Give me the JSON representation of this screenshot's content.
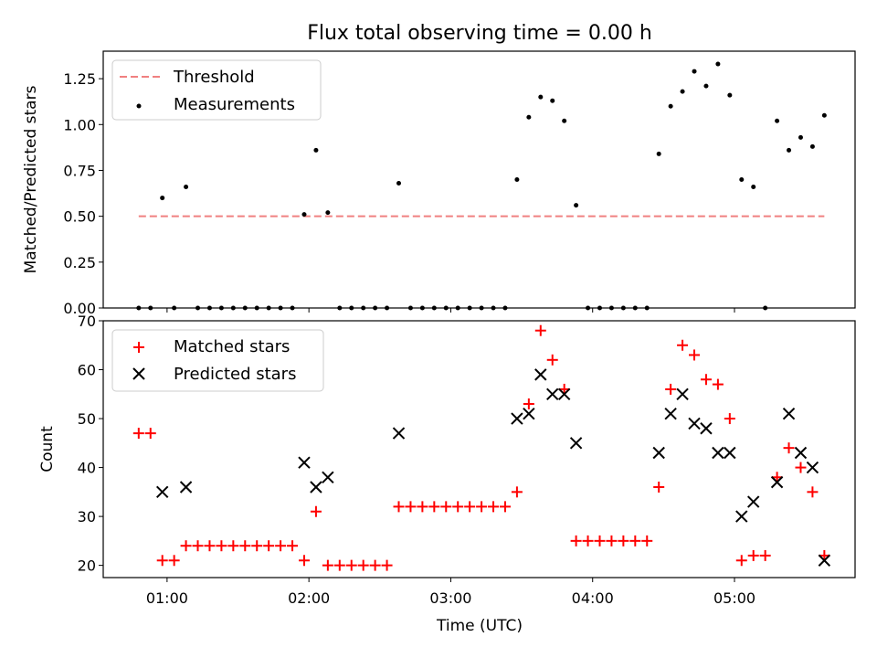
{
  "chart_data": [
    {
      "type": "scatter",
      "title": "Flux total observing time = 0.00 h",
      "xlabel": "",
      "ylabel": "Matched/Predicted stars",
      "xlim": [
        "00:33",
        "05:51"
      ],
      "ylim": [
        0,
        1.4
      ],
      "yticks": [
        "0.00",
        "0.25",
        "0.50",
        "0.75",
        "1.00",
        "1.25"
      ],
      "grid": false,
      "legend": "top-left",
      "threshold": {
        "name": "Threshold",
        "value": 0.5,
        "x_start": "00:48",
        "x_end": "05:38",
        "color": "#f08080"
      },
      "measurements": {
        "name": "Measurements",
        "color": "#000000",
        "points": [
          [
            "00:48",
            0.0
          ],
          [
            "00:53",
            0.0
          ],
          [
            "00:58",
            0.6
          ],
          [
            "01:03",
            0.0
          ],
          [
            "01:08",
            0.66
          ],
          [
            "01:13",
            0.0
          ],
          [
            "01:18",
            0.0
          ],
          [
            "01:23",
            0.0
          ],
          [
            "01:28",
            0.0
          ],
          [
            "01:33",
            0.0
          ],
          [
            "01:38",
            0.0
          ],
          [
            "01:43",
            0.0
          ],
          [
            "01:48",
            0.0
          ],
          [
            "01:53",
            0.0
          ],
          [
            "01:58",
            0.51
          ],
          [
            "02:03",
            0.86
          ],
          [
            "02:08",
            0.52
          ],
          [
            "02:13",
            0.0
          ],
          [
            "02:18",
            0.0
          ],
          [
            "02:23",
            0.0
          ],
          [
            "02:28",
            0.0
          ],
          [
            "02:33",
            0.0
          ],
          [
            "02:38",
            0.68
          ],
          [
            "02:43",
            0.0
          ],
          [
            "02:48",
            0.0
          ],
          [
            "02:53",
            0.0
          ],
          [
            "02:58",
            0.0
          ],
          [
            "03:03",
            0.0
          ],
          [
            "03:08",
            0.0
          ],
          [
            "03:13",
            0.0
          ],
          [
            "03:18",
            0.0
          ],
          [
            "03:23",
            0.0
          ],
          [
            "03:28",
            0.7
          ],
          [
            "03:33",
            1.04
          ],
          [
            "03:38",
            1.15
          ],
          [
            "03:43",
            1.13
          ],
          [
            "03:48",
            1.02
          ],
          [
            "03:53",
            0.56
          ],
          [
            "03:58",
            0.0
          ],
          [
            "04:03",
            0.0
          ],
          [
            "04:08",
            0.0
          ],
          [
            "04:13",
            0.0
          ],
          [
            "04:18",
            0.0
          ],
          [
            "04:23",
            0.0
          ],
          [
            "04:28",
            0.84
          ],
          [
            "04:33",
            1.1
          ],
          [
            "04:38",
            1.18
          ],
          [
            "04:43",
            1.29
          ],
          [
            "04:48",
            1.21
          ],
          [
            "04:53",
            1.33
          ],
          [
            "04:58",
            1.16
          ],
          [
            "05:03",
            0.7
          ],
          [
            "05:08",
            0.66
          ],
          [
            "05:13",
            0.0
          ],
          [
            "05:18",
            1.02
          ],
          [
            "05:23",
            0.86
          ],
          [
            "05:28",
            0.93
          ],
          [
            "05:33",
            0.88
          ],
          [
            "05:38",
            1.05
          ]
        ]
      }
    },
    {
      "type": "scatter",
      "title": "",
      "xlabel": "Time (UTC)",
      "ylabel": "Count",
      "xlim": [
        "00:33",
        "05:51"
      ],
      "xticks": [
        "01:00",
        "02:00",
        "03:00",
        "04:00",
        "05:00"
      ],
      "ylim": [
        17.5,
        70
      ],
      "yticks": [
        "20",
        "30",
        "40",
        "50",
        "60",
        "70"
      ],
      "grid": false,
      "legend": "top-left",
      "series": [
        {
          "name": "Matched stars",
          "marker": "plus",
          "color": "#ff0000",
          "points": [
            [
              "00:48",
              47
            ],
            [
              "00:53",
              47
            ],
            [
              "00:58",
              21
            ],
            [
              "01:03",
              21
            ],
            [
              "01:08",
              24
            ],
            [
              "01:13",
              24
            ],
            [
              "01:18",
              24
            ],
            [
              "01:23",
              24
            ],
            [
              "01:28",
              24
            ],
            [
              "01:33",
              24
            ],
            [
              "01:38",
              24
            ],
            [
              "01:43",
              24
            ],
            [
              "01:48",
              24
            ],
            [
              "01:53",
              24
            ],
            [
              "01:58",
              21
            ],
            [
              "02:03",
              31
            ],
            [
              "02:08",
              20
            ],
            [
              "02:13",
              20
            ],
            [
              "02:18",
              20
            ],
            [
              "02:23",
              20
            ],
            [
              "02:28",
              20
            ],
            [
              "02:33",
              20
            ],
            [
              "02:38",
              32
            ],
            [
              "02:43",
              32
            ],
            [
              "02:48",
              32
            ],
            [
              "02:53",
              32
            ],
            [
              "02:58",
              32
            ],
            [
              "03:03",
              32
            ],
            [
              "03:08",
              32
            ],
            [
              "03:13",
              32
            ],
            [
              "03:18",
              32
            ],
            [
              "03:23",
              32
            ],
            [
              "03:28",
              35
            ],
            [
              "03:33",
              53
            ],
            [
              "03:38",
              68
            ],
            [
              "03:43",
              62
            ],
            [
              "03:48",
              56
            ],
            [
              "03:53",
              25
            ],
            [
              "03:58",
              25
            ],
            [
              "04:03",
              25
            ],
            [
              "04:08",
              25
            ],
            [
              "04:13",
              25
            ],
            [
              "04:18",
              25
            ],
            [
              "04:23",
              25
            ],
            [
              "04:28",
              36
            ],
            [
              "04:33",
              56
            ],
            [
              "04:38",
              65
            ],
            [
              "04:43",
              63
            ],
            [
              "04:48",
              58
            ],
            [
              "04:53",
              57
            ],
            [
              "04:58",
              50
            ],
            [
              "05:03",
              21
            ],
            [
              "05:08",
              22
            ],
            [
              "05:13",
              22
            ],
            [
              "05:18",
              38
            ],
            [
              "05:23",
              44
            ],
            [
              "05:28",
              40
            ],
            [
              "05:33",
              35
            ],
            [
              "05:38",
              22
            ]
          ]
        },
        {
          "name": "Predicted stars",
          "marker": "x",
          "color": "#000000",
          "points": [
            [
              "00:58",
              35
            ],
            [
              "01:08",
              36
            ],
            [
              "01:58",
              41
            ],
            [
              "02:03",
              36
            ],
            [
              "02:08",
              38
            ],
            [
              "02:38",
              47
            ],
            [
              "03:28",
              50
            ],
            [
              "03:33",
              51
            ],
            [
              "03:38",
              59
            ],
            [
              "03:43",
              55
            ],
            [
              "03:48",
              55
            ],
            [
              "03:53",
              45
            ],
            [
              "04:28",
              43
            ],
            [
              "04:33",
              51
            ],
            [
              "04:38",
              55
            ],
            [
              "04:43",
              49
            ],
            [
              "04:48",
              48
            ],
            [
              "04:53",
              43
            ],
            [
              "04:58",
              43
            ],
            [
              "05:03",
              30
            ],
            [
              "05:08",
              33
            ],
            [
              "05:18",
              37
            ],
            [
              "05:23",
              51
            ],
            [
              "05:28",
              43
            ],
            [
              "05:33",
              40
            ],
            [
              "05:38",
              21
            ]
          ]
        }
      ]
    }
  ]
}
